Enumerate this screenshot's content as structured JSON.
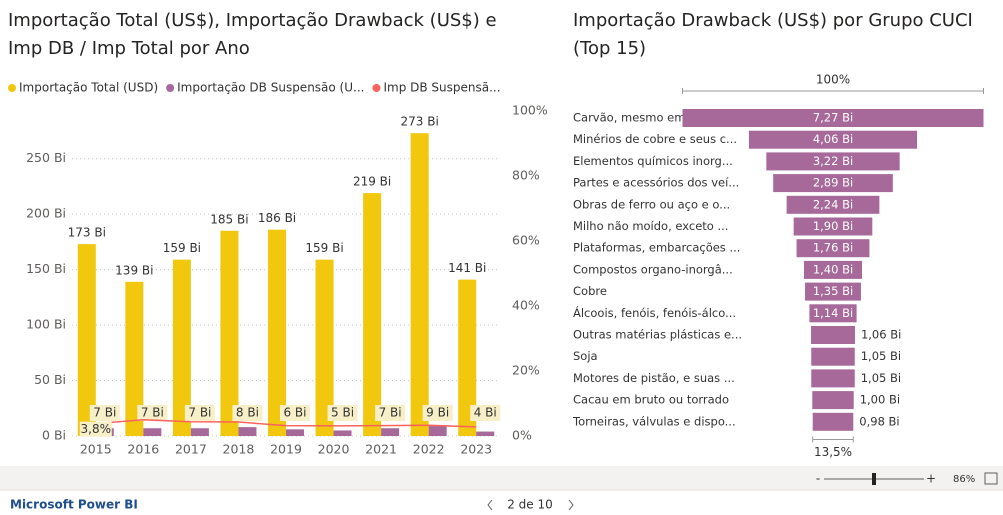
{
  "chart_data": [
    {
      "type": "combo",
      "title": "Importação Total (US$), Importação Drawback (US$) e",
      "title_line2": "Imp DB / Imp Total por Ano",
      "categories": [
        "2015",
        "2016",
        "2017",
        "2018",
        "2019",
        "2020",
        "2021",
        "2022",
        "2023"
      ],
      "series": [
        {
          "name": "Importação Total (USD)",
          "color": "#f2c80f",
          "kind": "bar",
          "values": [
            173,
            139,
            159,
            185,
            186,
            159,
            219,
            273,
            141
          ],
          "value_labels": [
            "173 Bi",
            "139 Bi",
            "159 Bi",
            "185 Bi",
            "186 Bi",
            "159 Bi",
            "219 Bi",
            "273 Bi",
            "141 Bi"
          ]
        },
        {
          "name": "Importação DB Suspensão (U...",
          "color": "#a66999",
          "kind": "bar",
          "values": [
            7,
            7,
            7,
            8,
            6,
            5,
            7,
            9,
            4
          ],
          "value_labels": [
            "7 Bi",
            "7 Bi",
            "7 Bi",
            "8 Bi",
            "6 Bi",
            "5 Bi",
            "7 Bi",
            "9 Bi",
            "4 Bi"
          ]
        },
        {
          "name": "Imp DB Suspensã...",
          "color": "#fd625e",
          "kind": "line",
          "axis": "y2",
          "values": [
            3.8,
            5.0,
            4.4,
            4.3,
            3.2,
            3.1,
            3.2,
            3.3,
            2.8
          ],
          "value_labels": [
            "3,8%",
            null,
            null,
            null,
            null,
            null,
            null,
            null,
            null
          ]
        }
      ],
      "ylim": [
        0,
        293
      ],
      "yticks": [
        {
          "value": 0,
          "label": "0 Bi"
        },
        {
          "value": 50,
          "label": "50 Bi"
        },
        {
          "value": 100,
          "label": "100 Bi"
        },
        {
          "value": 150,
          "label": "150 Bi"
        },
        {
          "value": 200,
          "label": "200 Bi"
        },
        {
          "value": 250,
          "label": "250 Bi"
        }
      ],
      "y2lim": [
        0,
        100
      ],
      "y2ticks": [
        {
          "value": 0,
          "label": "0%"
        },
        {
          "value": 20,
          "label": "20%"
        },
        {
          "value": 40,
          "label": "40%"
        },
        {
          "value": 60,
          "label": "60%"
        },
        {
          "value": 80,
          "label": "80%"
        },
        {
          "value": 100,
          "label": "100%"
        }
      ],
      "grid": true,
      "legend": "top-left"
    },
    {
      "type": "funnel",
      "title": "Importação Drawback (US$) por Grupo CUCI",
      "title_line2": "(Top 15)",
      "top_label": "100%",
      "bottom_label": "13,5%",
      "color": "#a66999",
      "categories": [
        "Carvão, mesmo em pó, ma...",
        "Minérios de cobre e seus c...",
        "Elementos químicos inorg...",
        "Partes e acessórios dos veí...",
        "Obras de ferro ou aço e o...",
        "Milho não moído, exceto ...",
        "Plataformas, embarcações ...",
        "Compostos organo-inorgâ...",
        "Cobre",
        "Álcoois, fenóis, fenóis-álco...",
        "Outras matérias plásticas e...",
        "Soja",
        "Motores de pistão, e suas ...",
        "Cacau em bruto ou torrado",
        "Torneiras, válvulas e dispo..."
      ],
      "values": [
        7.27,
        4.06,
        3.22,
        2.89,
        2.24,
        1.9,
        1.76,
        1.4,
        1.35,
        1.14,
        1.06,
        1.05,
        1.05,
        1.0,
        0.98
      ],
      "value_labels": [
        "7,27 Bi",
        "4,06 Bi",
        "3,22 Bi",
        "2,89 Bi",
        "2,24 Bi",
        "1,90 Bi",
        "1,76 Bi",
        "1,40 Bi",
        "1,35 Bi",
        "1,14 Bi",
        "1,06 Bi",
        "1,05 Bi",
        "1,05 Bi",
        "1,00 Bi",
        "0,98 Bi"
      ]
    }
  ],
  "footer": {
    "brand": "Microsoft Power BI",
    "page": "2 de 10",
    "zoom": "86%",
    "minus": "-",
    "plus": "+"
  }
}
